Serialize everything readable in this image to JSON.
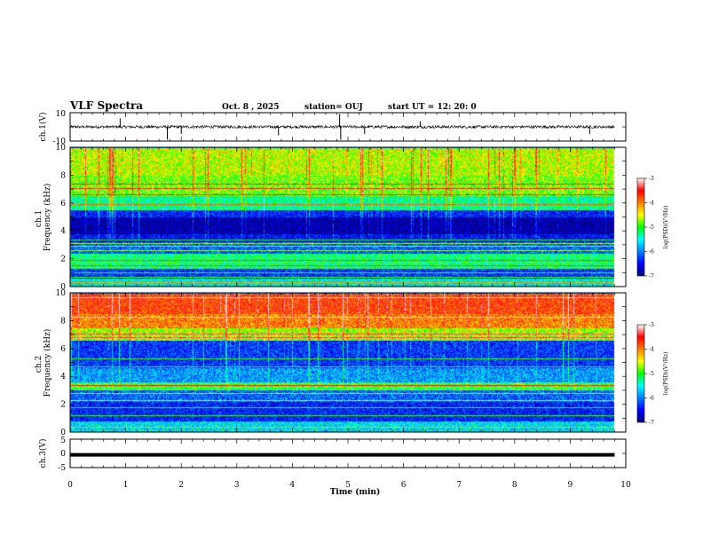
{
  "header": {
    "title": "VLF Spectra",
    "date": "Oct. 8 , 2025",
    "station": "station= OUJ",
    "start_ut": "start UT =  12: 20: 0"
  },
  "chart_data": [
    {
      "type": "line",
      "panel": "ch1-waveform",
      "ylabel": "ch.1(V)",
      "ylim": [
        -10,
        10
      ],
      "yticks": [
        "10",
        "-10"
      ],
      "xlim": [
        0,
        10
      ],
      "baseline": 0,
      "noise_amplitude": 1.0,
      "spikes": [
        {
          "t": 0.9,
          "v": 6
        },
        {
          "t": 1.75,
          "v": -9
        },
        {
          "t": 2.0,
          "v": -5
        },
        {
          "t": 3.75,
          "v": -6
        },
        {
          "t": 4.85,
          "v": 9
        },
        {
          "t": 4.87,
          "v": -9
        },
        {
          "t": 5.3,
          "v": -5
        },
        {
          "t": 6.3,
          "v": 4
        },
        {
          "t": 9.35,
          "v": -5
        }
      ]
    },
    {
      "type": "heatmap",
      "panel": "ch1-spectrogram",
      "ylabel": "ch.1 Frequency (kHz)",
      "ylim": [
        0,
        10
      ],
      "yticks": [
        "0",
        "2",
        "4",
        "6",
        "8",
        "10"
      ],
      "xlim": [
        0,
        10
      ],
      "data_end_min": 9.8,
      "colorbar": {
        "label": "log(PSD)(V²/Hz)",
        "range": [
          -7,
          -3
        ],
        "ticks": [
          "-3",
          "-4",
          "-5",
          "-6",
          "-7"
        ]
      },
      "band_levels_log_psd": [
        {
          "f_range": [
            0,
            0.6
          ],
          "level": -5.5
        },
        {
          "f_range": [
            0.6,
            1.3
          ],
          "level": -6.3
        },
        {
          "f_range": [
            1.3,
            2.4
          ],
          "level": -5.2
        },
        {
          "f_range": [
            2.4,
            3.2
          ],
          "level": -6.1
        },
        {
          "f_range": [
            3.2,
            3.8
          ],
          "level": -6.5
        },
        {
          "f_range": [
            3.8,
            5.0
          ],
          "level": -6.9
        },
        {
          "f_range": [
            5.0,
            5.5
          ],
          "level": -6.4
        },
        {
          "f_range": [
            5.5,
            6.5
          ],
          "level": -5.3
        },
        {
          "f_range": [
            6.5,
            8.0
          ],
          "level": -4.8
        },
        {
          "f_range": [
            8.0,
            10.0
          ],
          "level": -4.6
        }
      ],
      "spectral_lines_khz": [
        0.3,
        0.7,
        1.0,
        1.5,
        1.9,
        2.6,
        2.9,
        3.1,
        3.4,
        5.9,
        6.6,
        7.1,
        7.4
      ]
    },
    {
      "type": "heatmap",
      "panel": "ch2-spectrogram",
      "ylabel": "ch.2 Frequency (kHz)",
      "ylim": [
        0,
        10
      ],
      "yticks": [
        "0",
        "2",
        "4",
        "6",
        "8",
        "10"
      ],
      "xlim": [
        0,
        10
      ],
      "data_end_min": 9.8,
      "colorbar": {
        "label": "log(PSD)(V²/Hz)",
        "range": [
          -7,
          -3
        ],
        "ticks": [
          "-3",
          "-4",
          "-5",
          "-6",
          "-7"
        ]
      },
      "band_levels_log_psd": [
        {
          "f_range": [
            0,
            0.8
          ],
          "level": -5.6
        },
        {
          "f_range": [
            0.8,
            2.2
          ],
          "level": -6.4
        },
        {
          "f_range": [
            2.2,
            3.0
          ],
          "level": -6.1
        },
        {
          "f_range": [
            3.0,
            3.6
          ],
          "level": -5.0
        },
        {
          "f_range": [
            3.6,
            4.6
          ],
          "level": -5.9
        },
        {
          "f_range": [
            4.6,
            6.6
          ],
          "level": -6.3
        },
        {
          "f_range": [
            6.6,
            7.5
          ],
          "level": -4.7
        },
        {
          "f_range": [
            7.5,
            8.5
          ],
          "level": -4.0
        },
        {
          "f_range": [
            8.5,
            10.0
          ],
          "level": -3.7
        }
      ],
      "spectral_lines_khz": [
        0.4,
        1.2,
        1.8,
        2.3,
        2.8,
        3.4,
        4.7,
        5.3,
        6.8,
        7.1,
        8.3,
        9.7
      ]
    },
    {
      "type": "line",
      "panel": "ch3-waveform",
      "ylabel": "ch.3(V)",
      "ylim": [
        -5,
        5
      ],
      "yticks": [
        "5",
        "0",
        "-5"
      ],
      "xlim": [
        0,
        10
      ],
      "value": -0.5,
      "data_end_min": 9.8,
      "xlabel": "Time (min)",
      "xticks": [
        "0",
        "1",
        "2",
        "3",
        "4",
        "5",
        "6",
        "7",
        "8",
        "9",
        "10"
      ]
    }
  ]
}
